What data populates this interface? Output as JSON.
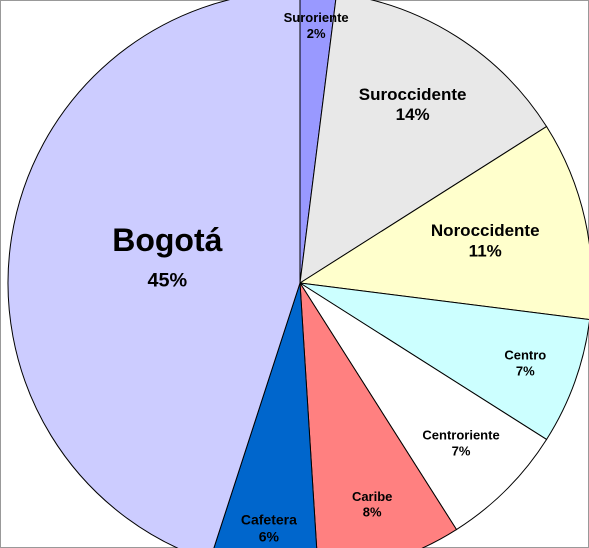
{
  "chart_data": {
    "type": "pie",
    "categories": [
      "Suroriente",
      "Suroccidente",
      "Noroccidente",
      "Centro",
      "Centroriente",
      "Caribe",
      "Cafetera",
      "Bogotá"
    ],
    "values": [
      2,
      14,
      11,
      7,
      7,
      8,
      6,
      45
    ],
    "value_labels": [
      "2%",
      "14%",
      "11%",
      "7%",
      "7%",
      "8%",
      "6%",
      "45%"
    ],
    "colors": [
      "#9999ff",
      "#e8e8e8",
      "#ffffcc",
      "#ccffff",
      "#ffffff",
      "#ff8080",
      "#0066cc",
      "#ccccff"
    ]
  }
}
